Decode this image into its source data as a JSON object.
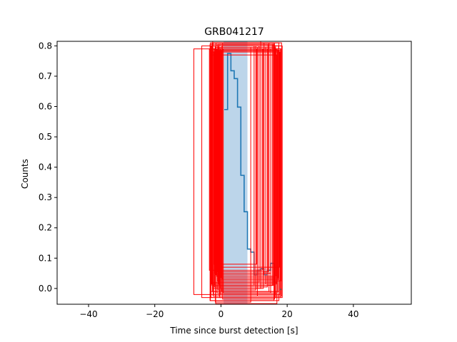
{
  "chart_data": {
    "type": "line",
    "title": "GRB041217",
    "xlabel": "Time since burst detection [s]",
    "ylabel": "Counts",
    "xlim": [
      -49.5,
      57.5
    ],
    "ylim": [
      -0.052,
      0.815
    ],
    "xticks": [
      -40,
      -20,
      0,
      20,
      40
    ],
    "yticks": [
      0.0,
      0.1,
      0.2,
      0.3,
      0.4,
      0.5,
      0.6,
      0.7,
      0.8
    ],
    "xtick_labels": [
      "−40",
      "−20",
      "0",
      "20",
      "40"
    ],
    "ytick_labels": [
      "0.0",
      "0.1",
      "0.2",
      "0.3",
      "0.4",
      "0.5",
      "0.6",
      "0.7",
      "0.8"
    ],
    "grid": false,
    "shaded_region": {
      "x0": 0.8,
      "x1": 8.0,
      "color": "#bcd5ea"
    },
    "series": [
      {
        "style": "step",
        "color": "#1f77b4",
        "x": [
          1.0,
          2.0,
          3.0,
          4.0,
          5.0,
          6.0,
          7.0,
          8.0,
          9.0,
          10.0,
          11.0,
          12.0,
          13.0,
          14.0,
          15.0,
          16.0,
          17.0
        ],
        "y": [
          0.59,
          0.775,
          0.718,
          0.692,
          0.598,
          0.373,
          0.253,
          0.13,
          0.12,
          0.045,
          0.06,
          0.065,
          0.045,
          0.06,
          0.083,
          0.02,
          -0.01
        ]
      }
    ],
    "extra_points": [
      {
        "x": 18.0,
        "y": -0.003,
        "color": "#555555"
      }
    ],
    "boxes_color": "#ff0000",
    "boxes": [
      [
        -8.2,
        18.0,
        -0.02,
        0.79
      ],
      [
        -5.8,
        16.5,
        -0.03,
        0.8
      ],
      [
        -3.2,
        17.5,
        -0.04,
        0.81
      ],
      [
        -2.5,
        12.0,
        0.0,
        0.815
      ],
      [
        -1.8,
        10.0,
        0.01,
        0.8
      ],
      [
        -1.2,
        15.0,
        -0.015,
        0.79
      ],
      [
        -0.8,
        17.0,
        0.02,
        0.785
      ],
      [
        -0.5,
        11.0,
        -0.025,
        0.795
      ],
      [
        -0.3,
        16.0,
        0.03,
        0.78
      ],
      [
        -2.0,
        14.0,
        0.005,
        0.79
      ],
      [
        -3.0,
        18.5,
        -0.03,
        0.8
      ],
      [
        0.2,
        17.5,
        -0.01,
        0.785
      ],
      [
        -1.5,
        13.0,
        0.045,
        0.81
      ],
      [
        -2.8,
        16.8,
        0.015,
        0.77
      ],
      [
        -0.9,
        10.5,
        -0.005,
        0.8
      ],
      [
        -1.1,
        18.2,
        0.025,
        0.79
      ],
      [
        0.5,
        16.2,
        -0.035,
        0.81
      ],
      [
        -3.5,
        12.5,
        0.06,
        0.79
      ],
      [
        -2.2,
        17.8,
        -0.02,
        0.78
      ],
      [
        -0.6,
        15.5,
        0.01,
        0.805
      ],
      [
        -1.7,
        9.0,
        -0.045,
        0.795
      ],
      [
        0.0,
        17.2,
        0.035,
        0.785
      ],
      [
        -2.6,
        14.5,
        -0.01,
        0.81
      ],
      [
        -1.3,
        16.6,
        0.04,
        0.79
      ],
      [
        -0.4,
        18.0,
        -0.03,
        0.785
      ],
      [
        -2.9,
        11.5,
        0.02,
        0.8
      ],
      [
        0.7,
        17.0,
        -0.015,
        0.79
      ],
      [
        -1.9,
        15.0,
        0.05,
        0.78
      ],
      [
        -3.3,
        16.0,
        -0.04,
        0.805
      ],
      [
        -0.2,
        12.8,
        0.0,
        0.79
      ],
      [
        -1.4,
        17.6,
        0.07,
        0.785
      ],
      [
        -2.4,
        18.3,
        -0.025,
        0.81
      ],
      [
        -0.7,
        13.5,
        0.015,
        0.795
      ],
      [
        -1.6,
        16.9,
        -0.05,
        0.79
      ],
      [
        0.3,
        17.4,
        0.03,
        0.8
      ],
      [
        -2.1,
        10.8,
        0.08,
        0.79
      ],
      [
        -3.1,
        17.1,
        -0.01,
        0.78
      ],
      [
        -1.0,
        14.2,
        0.055,
        0.805
      ],
      [
        -0.1,
        16.3,
        -0.02,
        0.795
      ],
      [
        -2.7,
        15.8,
        0.01,
        0.81
      ]
    ]
  }
}
